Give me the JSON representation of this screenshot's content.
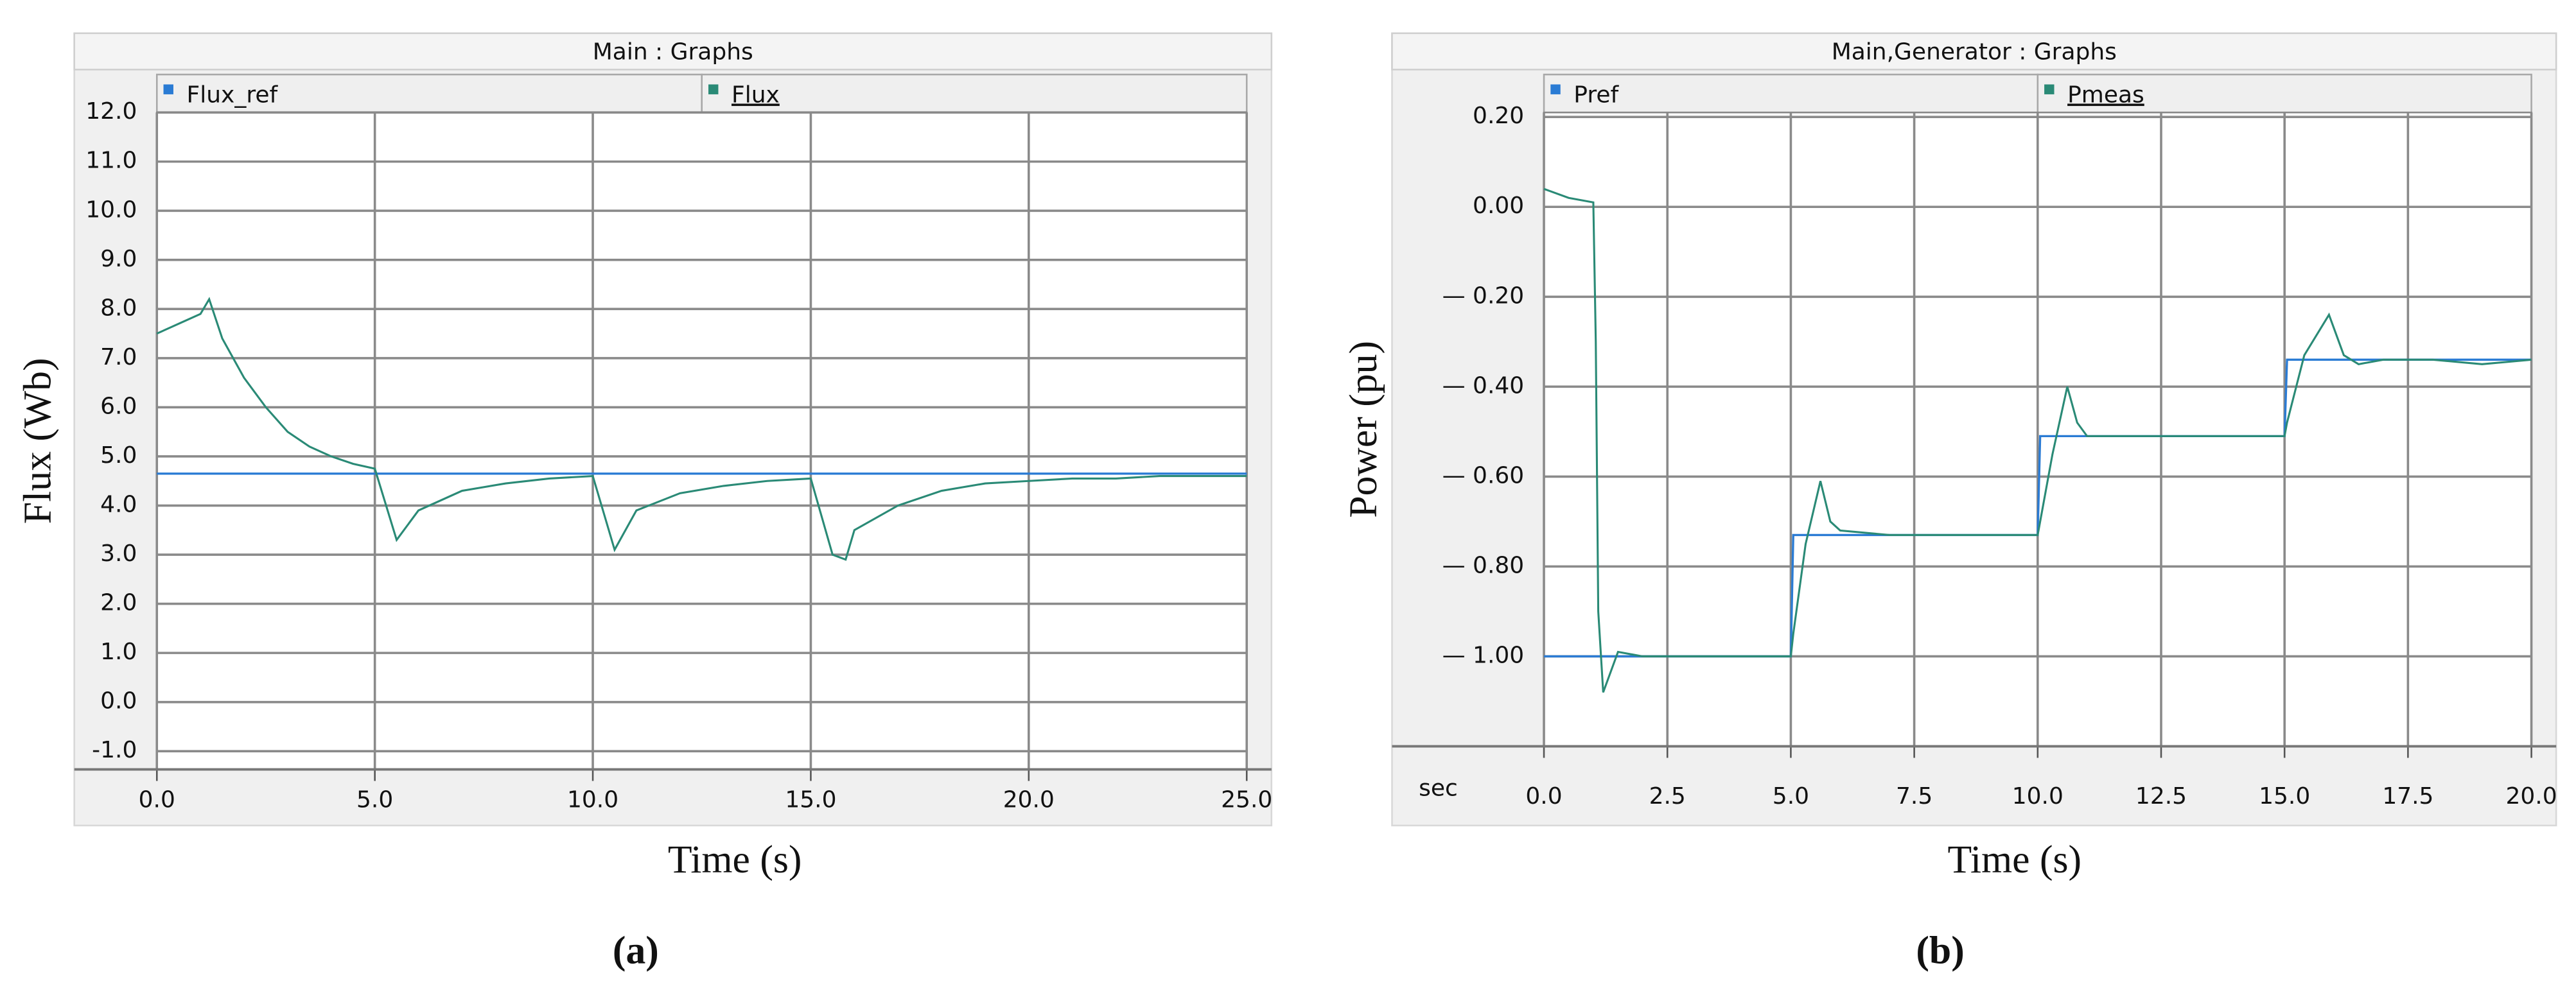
{
  "chart_data": [
    {
      "type": "line",
      "title": "Main : Graphs",
      "xlabel": "Time (s)",
      "ylabel": "Flux (Wb)",
      "panel_label": "(a)",
      "x": [
        0,
        0.5,
        1,
        1.2,
        1.5,
        2,
        2.5,
        3,
        3.5,
        4,
        4.5,
        5,
        5.5,
        6,
        7,
        8,
        9,
        10,
        10.5,
        11,
        12,
        13,
        14,
        15,
        15.5,
        15.8,
        16,
        17,
        18,
        19,
        20,
        21,
        22,
        23,
        24,
        25
      ],
      "series": [
        {
          "name": "Flux_ref",
          "color": "#2a7bd4",
          "values": [
            4.65,
            4.65,
            4.65,
            4.65,
            4.65,
            4.65,
            4.65,
            4.65,
            4.65,
            4.65,
            4.65,
            4.65,
            4.65,
            4.65,
            4.65,
            4.65,
            4.65,
            4.65,
            4.65,
            4.65,
            4.65,
            4.65,
            4.65,
            4.65,
            4.65,
            4.65,
            4.65,
            4.65,
            4.65,
            4.65,
            4.65,
            4.65,
            4.65,
            4.65,
            4.65,
            4.65
          ]
        },
        {
          "name": "Flux",
          "color": "#2a8a76",
          "values": [
            7.5,
            7.7,
            7.9,
            8.2,
            7.4,
            6.6,
            6.0,
            5.5,
            5.2,
            5.0,
            4.85,
            4.75,
            3.3,
            3.9,
            4.3,
            4.45,
            4.55,
            4.6,
            3.1,
            3.9,
            4.25,
            4.4,
            4.5,
            4.55,
            3.0,
            2.9,
            3.5,
            4.0,
            4.3,
            4.45,
            4.5,
            4.55,
            4.55,
            4.6,
            4.6,
            4.6
          ]
        }
      ],
      "xlim": [
        0,
        25
      ],
      "ylim": [
        -1.37,
        12
      ],
      "xticks": [
        {
          "value": 0,
          "label": "0.0"
        },
        {
          "value": 5,
          "label": "5.0"
        },
        {
          "value": 10,
          "label": "10.0"
        },
        {
          "value": 15,
          "label": "15.0"
        },
        {
          "value": 20,
          "label": "20.0"
        },
        {
          "value": 25,
          "label": "25.0"
        }
      ],
      "yticks": [
        {
          "value": -1,
          "label": "-1.0"
        },
        {
          "value": 0,
          "label": "0.0"
        },
        {
          "value": 1,
          "label": "1.0"
        },
        {
          "value": 2,
          "label": "2.0"
        },
        {
          "value": 3,
          "label": "3.0"
        },
        {
          "value": 4,
          "label": "4.0"
        },
        {
          "value": 5,
          "label": "5.0"
        },
        {
          "value": 6,
          "label": "6.0"
        },
        {
          "value": 7,
          "label": "7.0"
        },
        {
          "value": 8,
          "label": "8.0"
        },
        {
          "value": 9,
          "label": "9.0"
        },
        {
          "value": 10,
          "label": "10.0"
        },
        {
          "value": 11,
          "label": "11.0"
        },
        {
          "value": 12,
          "label": "12.0"
        }
      ],
      "grid": true
    },
    {
      "type": "line",
      "title": "Main,Generator : Graphs",
      "xlabel": "Time (s)",
      "ylabel": "Power (pu)",
      "panel_label": "(b)",
      "x_unit_label": "sec",
      "x": [
        0,
        0.5,
        1,
        1.05,
        1.1,
        1.2,
        1.5,
        2,
        3,
        4,
        5,
        5.05,
        5.3,
        5.6,
        5.8,
        6,
        7,
        8,
        9,
        10,
        10.05,
        10.3,
        10.6,
        10.8,
        11,
        12,
        13,
        14,
        15,
        15.05,
        15.4,
        15.9,
        16.2,
        16.5,
        17,
        18,
        19,
        20
      ],
      "series": [
        {
          "name": "Pref",
          "color": "#2a7bd4",
          "values": [
            -1.0,
            -1.0,
            -1.0,
            -1.0,
            -1.0,
            -1.0,
            -1.0,
            -1.0,
            -1.0,
            -1.0,
            -1.0,
            -0.73,
            -0.73,
            -0.73,
            -0.73,
            -0.73,
            -0.73,
            -0.73,
            -0.73,
            -0.73,
            -0.51,
            -0.51,
            -0.51,
            -0.51,
            -0.51,
            -0.51,
            -0.51,
            -0.51,
            -0.51,
            -0.34,
            -0.34,
            -0.34,
            -0.34,
            -0.34,
            -0.34,
            -0.34,
            -0.34,
            -0.34
          ]
        },
        {
          "name": "Pmeas",
          "color": "#2a8a76",
          "values": [
            0.04,
            0.02,
            0.01,
            -0.3,
            -0.9,
            -1.08,
            -0.99,
            -1.0,
            -1.0,
            -1.0,
            -1.0,
            -0.95,
            -0.75,
            -0.61,
            -0.7,
            -0.72,
            -0.73,
            -0.73,
            -0.73,
            -0.73,
            -0.7,
            -0.55,
            -0.4,
            -0.48,
            -0.51,
            -0.51,
            -0.51,
            -0.51,
            -0.51,
            -0.48,
            -0.33,
            -0.24,
            -0.33,
            -0.35,
            -0.34,
            -0.34,
            -0.35,
            -0.34
          ]
        }
      ],
      "xlim": [
        0,
        20
      ],
      "ylim": [
        -1.2,
        0.21
      ],
      "xticks": [
        {
          "value": 0,
          "label": "0.0"
        },
        {
          "value": 2.5,
          "label": "2.5"
        },
        {
          "value": 5,
          "label": "5.0"
        },
        {
          "value": 7.5,
          "label": "7.5"
        },
        {
          "value": 10,
          "label": "10.0"
        },
        {
          "value": 12.5,
          "label": "12.5"
        },
        {
          "value": 15,
          "label": "15.0"
        },
        {
          "value": 17.5,
          "label": "17.5"
        },
        {
          "value": 20,
          "label": "20.0"
        }
      ],
      "yticks": [
        {
          "value": 0.2,
          "label": "0.20"
        },
        {
          "value": 0,
          "label": "0.00"
        },
        {
          "value": -0.2,
          "label": "— 0.20"
        },
        {
          "value": -0.4,
          "label": "— 0.40"
        },
        {
          "value": -0.6,
          "label": "— 0.60"
        },
        {
          "value": -0.8,
          "label": "— 0.80"
        },
        {
          "value": -1,
          "label": "— 1.00"
        }
      ],
      "grid": true
    }
  ]
}
